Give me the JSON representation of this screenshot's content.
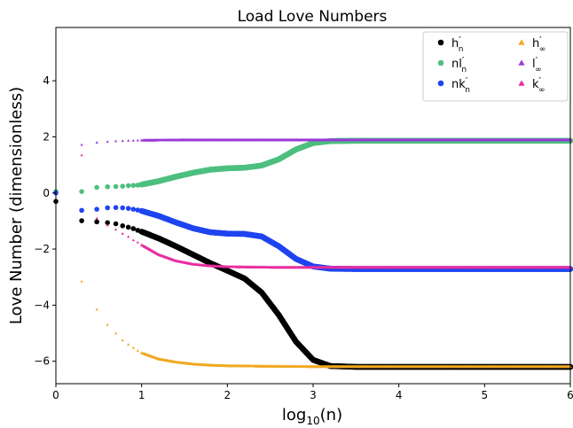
{
  "chart_data": {
    "type": "scatter",
    "title": "Load Love Numbers",
    "xlabel_main": "log",
    "xlabel_sub": "10",
    "xlabel_tail": "(n)",
    "ylabel": "Love Number (dimensionless)",
    "xlim": [
      0,
      6
    ],
    "ylim": [
      -6.8,
      5.9
    ],
    "xticks": [
      0,
      1,
      2,
      3,
      4,
      5,
      6
    ],
    "yticks": [
      -6,
      -4,
      -2,
      0,
      2,
      4
    ],
    "ytick_labels": [
      "−6",
      "−4",
      "−2",
      "0",
      "2",
      "4"
    ],
    "grid": false,
    "legend_position": "top-right",
    "series": [
      {
        "name": "h′n",
        "label_main": "h",
        "label_prime": "′",
        "label_sub": "n",
        "marker": "circle",
        "color": "#000000",
        "points": [
          [
            0,
            -0.3
          ],
          [
            0.301,
            -0.99
          ],
          [
            0.477,
            -1.03
          ],
          [
            0.602,
            -1.06
          ],
          [
            0.699,
            -1.1
          ],
          [
            0.778,
            -1.17
          ],
          [
            0.845,
            -1.22
          ],
          [
            0.903,
            -1.27
          ],
          [
            0.954,
            -1.33
          ],
          [
            1.0,
            -1.38
          ],
          [
            1.2,
            -1.62
          ],
          [
            1.4,
            -1.9
          ],
          [
            1.6,
            -2.2
          ],
          [
            1.8,
            -2.5
          ],
          [
            2.0,
            -2.77
          ],
          [
            2.2,
            -3.05
          ],
          [
            2.4,
            -3.55
          ],
          [
            2.6,
            -4.35
          ],
          [
            2.8,
            -5.3
          ],
          [
            3.0,
            -5.95
          ],
          [
            3.2,
            -6.17
          ],
          [
            3.5,
            -6.2
          ],
          [
            4.0,
            -6.2
          ],
          [
            5.0,
            -6.2
          ],
          [
            6.0,
            -6.2
          ]
        ]
      },
      {
        "name": "nl′n",
        "label_main": "nl",
        "label_prime": "′",
        "label_sub": "n",
        "marker": "circle",
        "color": "#4dbf7f",
        "points": [
          [
            0,
            0.05
          ],
          [
            0.301,
            0.05
          ],
          [
            0.477,
            0.2
          ],
          [
            0.602,
            0.22
          ],
          [
            0.699,
            0.23
          ],
          [
            0.778,
            0.24
          ],
          [
            0.845,
            0.26
          ],
          [
            0.903,
            0.27
          ],
          [
            0.954,
            0.28
          ],
          [
            1.0,
            0.3
          ],
          [
            1.2,
            0.42
          ],
          [
            1.4,
            0.58
          ],
          [
            1.6,
            0.72
          ],
          [
            1.8,
            0.83
          ],
          [
            2.0,
            0.88
          ],
          [
            2.2,
            0.9
          ],
          [
            2.4,
            0.98
          ],
          [
            2.6,
            1.2
          ],
          [
            2.8,
            1.55
          ],
          [
            3.0,
            1.78
          ],
          [
            3.2,
            1.85
          ],
          [
            3.5,
            1.86
          ],
          [
            4.0,
            1.86
          ],
          [
            5.0,
            1.86
          ],
          [
            6.0,
            1.86
          ]
        ]
      },
      {
        "name": "nk′n",
        "label_main": "nk",
        "label_prime": "′",
        "label_sub": "n",
        "marker": "circle",
        "color": "#1f44f0",
        "points": [
          [
            0,
            0.0
          ],
          [
            0.301,
            -0.62
          ],
          [
            0.477,
            -0.58
          ],
          [
            0.602,
            -0.53
          ],
          [
            0.699,
            -0.52
          ],
          [
            0.778,
            -0.53
          ],
          [
            0.845,
            -0.55
          ],
          [
            0.903,
            -0.58
          ],
          [
            0.954,
            -0.61
          ],
          [
            1.0,
            -0.64
          ],
          [
            1.2,
            -0.82
          ],
          [
            1.4,
            -1.05
          ],
          [
            1.6,
            -1.26
          ],
          [
            1.8,
            -1.4
          ],
          [
            2.0,
            -1.45
          ],
          [
            2.2,
            -1.46
          ],
          [
            2.4,
            -1.55
          ],
          [
            2.6,
            -1.9
          ],
          [
            2.8,
            -2.35
          ],
          [
            3.0,
            -2.62
          ],
          [
            3.2,
            -2.7
          ],
          [
            3.5,
            -2.71
          ],
          [
            4.0,
            -2.71
          ],
          [
            5.0,
            -2.71
          ],
          [
            6.0,
            -2.71
          ]
        ]
      },
      {
        "name": "h′∞",
        "label_main": "h",
        "label_prime": "′",
        "label_sub": "∞",
        "marker": "triangle",
        "color": "#f0a820",
        "points": [
          [
            0.301,
            -3.15
          ],
          [
            0.477,
            -4.15
          ],
          [
            0.602,
            -4.7
          ],
          [
            0.699,
            -5.0
          ],
          [
            0.778,
            -5.25
          ],
          [
            0.845,
            -5.4
          ],
          [
            0.903,
            -5.52
          ],
          [
            0.954,
            -5.62
          ],
          [
            1.0,
            -5.7
          ],
          [
            1.2,
            -5.92
          ],
          [
            1.4,
            -6.03
          ],
          [
            1.6,
            -6.1
          ],
          [
            1.8,
            -6.14
          ],
          [
            2.0,
            -6.16
          ],
          [
            2.5,
            -6.18
          ],
          [
            3.0,
            -6.19
          ],
          [
            4.0,
            -6.19
          ],
          [
            5.0,
            -6.19
          ],
          [
            6.0,
            -6.19
          ]
        ]
      },
      {
        "name": "l′∞",
        "label_main": "l",
        "label_prime": "′",
        "label_sub": "∞",
        "marker": "triangle",
        "color": "#9a3ad6",
        "points": [
          [
            0.301,
            1.72
          ],
          [
            0.477,
            1.8
          ],
          [
            0.602,
            1.83
          ],
          [
            0.699,
            1.85
          ],
          [
            0.778,
            1.86
          ],
          [
            0.845,
            1.87
          ],
          [
            0.903,
            1.87
          ],
          [
            0.954,
            1.88
          ],
          [
            1.0,
            1.88
          ],
          [
            1.5,
            1.89
          ],
          [
            2.0,
            1.89
          ],
          [
            3.0,
            1.89
          ],
          [
            4.0,
            1.89
          ],
          [
            5.0,
            1.89
          ],
          [
            6.0,
            1.89
          ]
        ]
      },
      {
        "name": "k′∞",
        "label_main": "k",
        "label_prime": "′",
        "label_sub": "∞",
        "marker": "triangle",
        "color": "#e82ea0",
        "points": [
          [
            0,
            0.02
          ],
          [
            0.301,
            1.35
          ],
          [
            0.477,
            -0.9
          ],
          [
            0.602,
            -1.15
          ],
          [
            0.699,
            -1.3
          ],
          [
            0.778,
            -1.45
          ],
          [
            0.845,
            -1.56
          ],
          [
            0.903,
            -1.68
          ],
          [
            0.954,
            -1.76
          ],
          [
            1.0,
            -1.85
          ],
          [
            1.2,
            -2.2
          ],
          [
            1.4,
            -2.42
          ],
          [
            1.6,
            -2.54
          ],
          [
            1.8,
            -2.6
          ],
          [
            2.0,
            -2.63
          ],
          [
            2.5,
            -2.65
          ],
          [
            3.0,
            -2.65
          ],
          [
            4.0,
            -2.65
          ],
          [
            5.0,
            -2.65
          ],
          [
            6.0,
            -2.65
          ]
        ]
      }
    ]
  }
}
